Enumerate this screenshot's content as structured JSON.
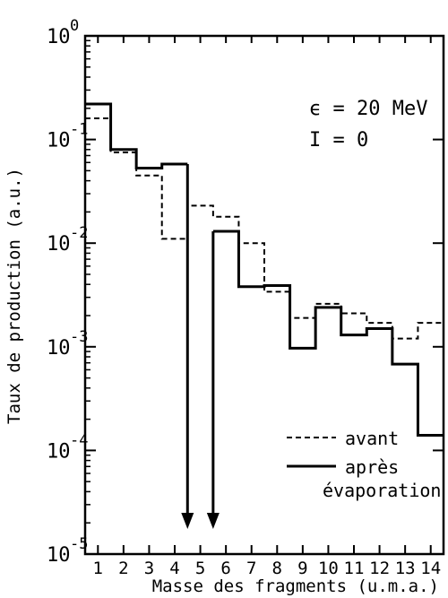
{
  "chart_data": {
    "type": "step",
    "xlabel": "Masse des fragments (u.m.a.)",
    "ylabel": "Taux de production (a.u.)",
    "x_ticks": [
      1,
      2,
      3,
      4,
      5,
      6,
      7,
      8,
      9,
      10,
      11,
      12,
      13,
      14
    ],
    "x_tick_labels": [
      "1",
      "2",
      "3",
      "4",
      "5",
      "6",
      "7",
      "8",
      "9",
      "10",
      "11",
      "12",
      "13",
      "14"
    ],
    "xlim": [
      0.5,
      14.5
    ],
    "y_scale": "log",
    "ylim": [
      1e-05,
      1
    ],
    "y_ticks": [
      {
        "base": "10",
        "exp": "-5",
        "value": 1e-05
      },
      {
        "base": "10",
        "exp": "-4",
        "value": 0.0001
      },
      {
        "base": "10",
        "exp": "-3",
        "value": 0.001
      },
      {
        "base": "10",
        "exp": "-2",
        "value": 0.01
      },
      {
        "base": "10",
        "exp": "-1",
        "value": 0.1
      },
      {
        "base": "10",
        "exp": "0",
        "value": 1
      }
    ],
    "annotations": [
      "ϵ = 20 MeV",
      "I = 0"
    ],
    "arrows_at_mass": [
      4.5,
      5.5
    ],
    "series": [
      {
        "name": "avant",
        "style": "dashed",
        "values": [
          0.16,
          0.075,
          0.045,
          0.011,
          0.023,
          0.018,
          0.01,
          0.0034,
          0.0019,
          0.0026,
          0.0021,
          0.0017,
          0.0012,
          0.0017
        ]
      },
      {
        "name": "après évaporation",
        "style": "solid",
        "values": [
          0.22,
          0.08,
          0.053,
          0.058,
          null,
          0.013,
          0.0038,
          0.0039,
          0.00097,
          0.0024,
          0.0013,
          0.0015,
          0.00068,
          0.00014
        ]
      }
    ],
    "legend": {
      "position": "bottom-right",
      "entries": [
        {
          "label": "avant",
          "style": "dashed"
        },
        {
          "label_line1": "après",
          "label_line2": "évaporation",
          "style": "solid"
        }
      ]
    }
  }
}
